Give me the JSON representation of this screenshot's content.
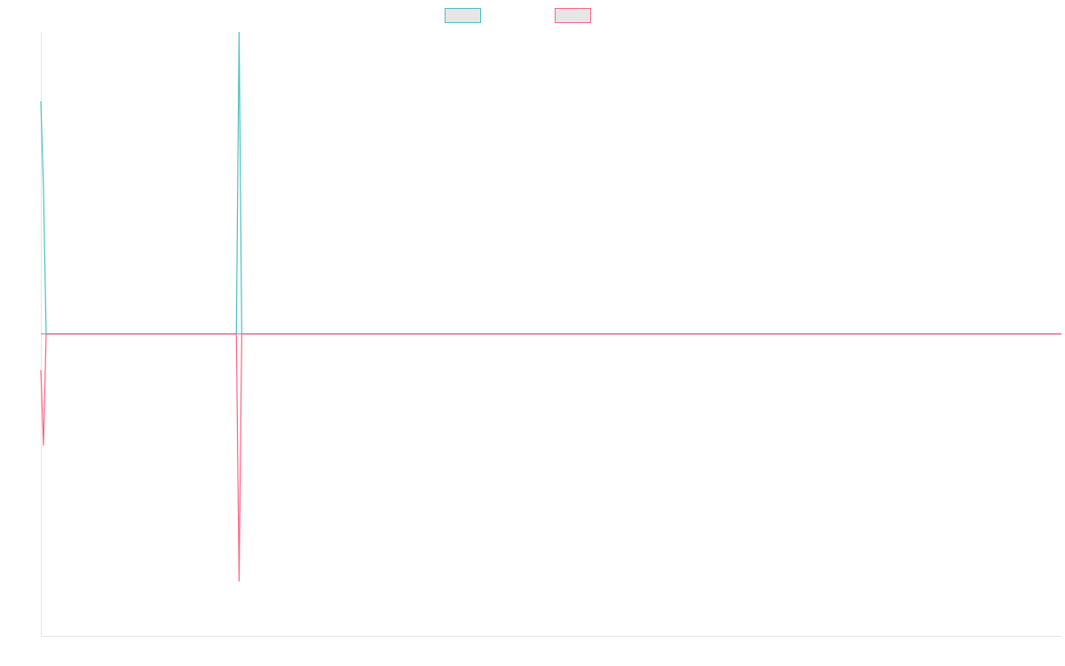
{
  "chart_data": {
    "type": "line",
    "title": "",
    "xlabel": "",
    "ylabel": "",
    "grid": false,
    "legend_position": "top-center",
    "x": [
      0,
      1,
      2,
      72,
      73,
      74,
      75,
      76,
      77,
      200,
      300,
      381
    ],
    "ylim": [
      -1,
      1
    ],
    "series": [
      {
        "name": "",
        "color": "#4bc0c0",
        "legend_fill": "#e6e6e6",
        "values": [
          0.77,
          0.48,
          0,
          0,
          0,
          1,
          0,
          0,
          0,
          0,
          0,
          0
        ]
      },
      {
        "name": "",
        "color": "#ff6384",
        "legend_fill": "#e6e6e6",
        "values": [
          -0.12,
          -0.37,
          0,
          0,
          0,
          -0.82,
          0,
          0,
          0,
          0,
          0,
          0
        ]
      },
      {
        "name": "",
        "color": "#8fa8d8",
        "legend_fill": "",
        "values": [
          0,
          0,
          0,
          0,
          0,
          0,
          0,
          0,
          0,
          0,
          0,
          0
        ]
      }
    ],
    "axis_color": "#e5e5e5"
  }
}
